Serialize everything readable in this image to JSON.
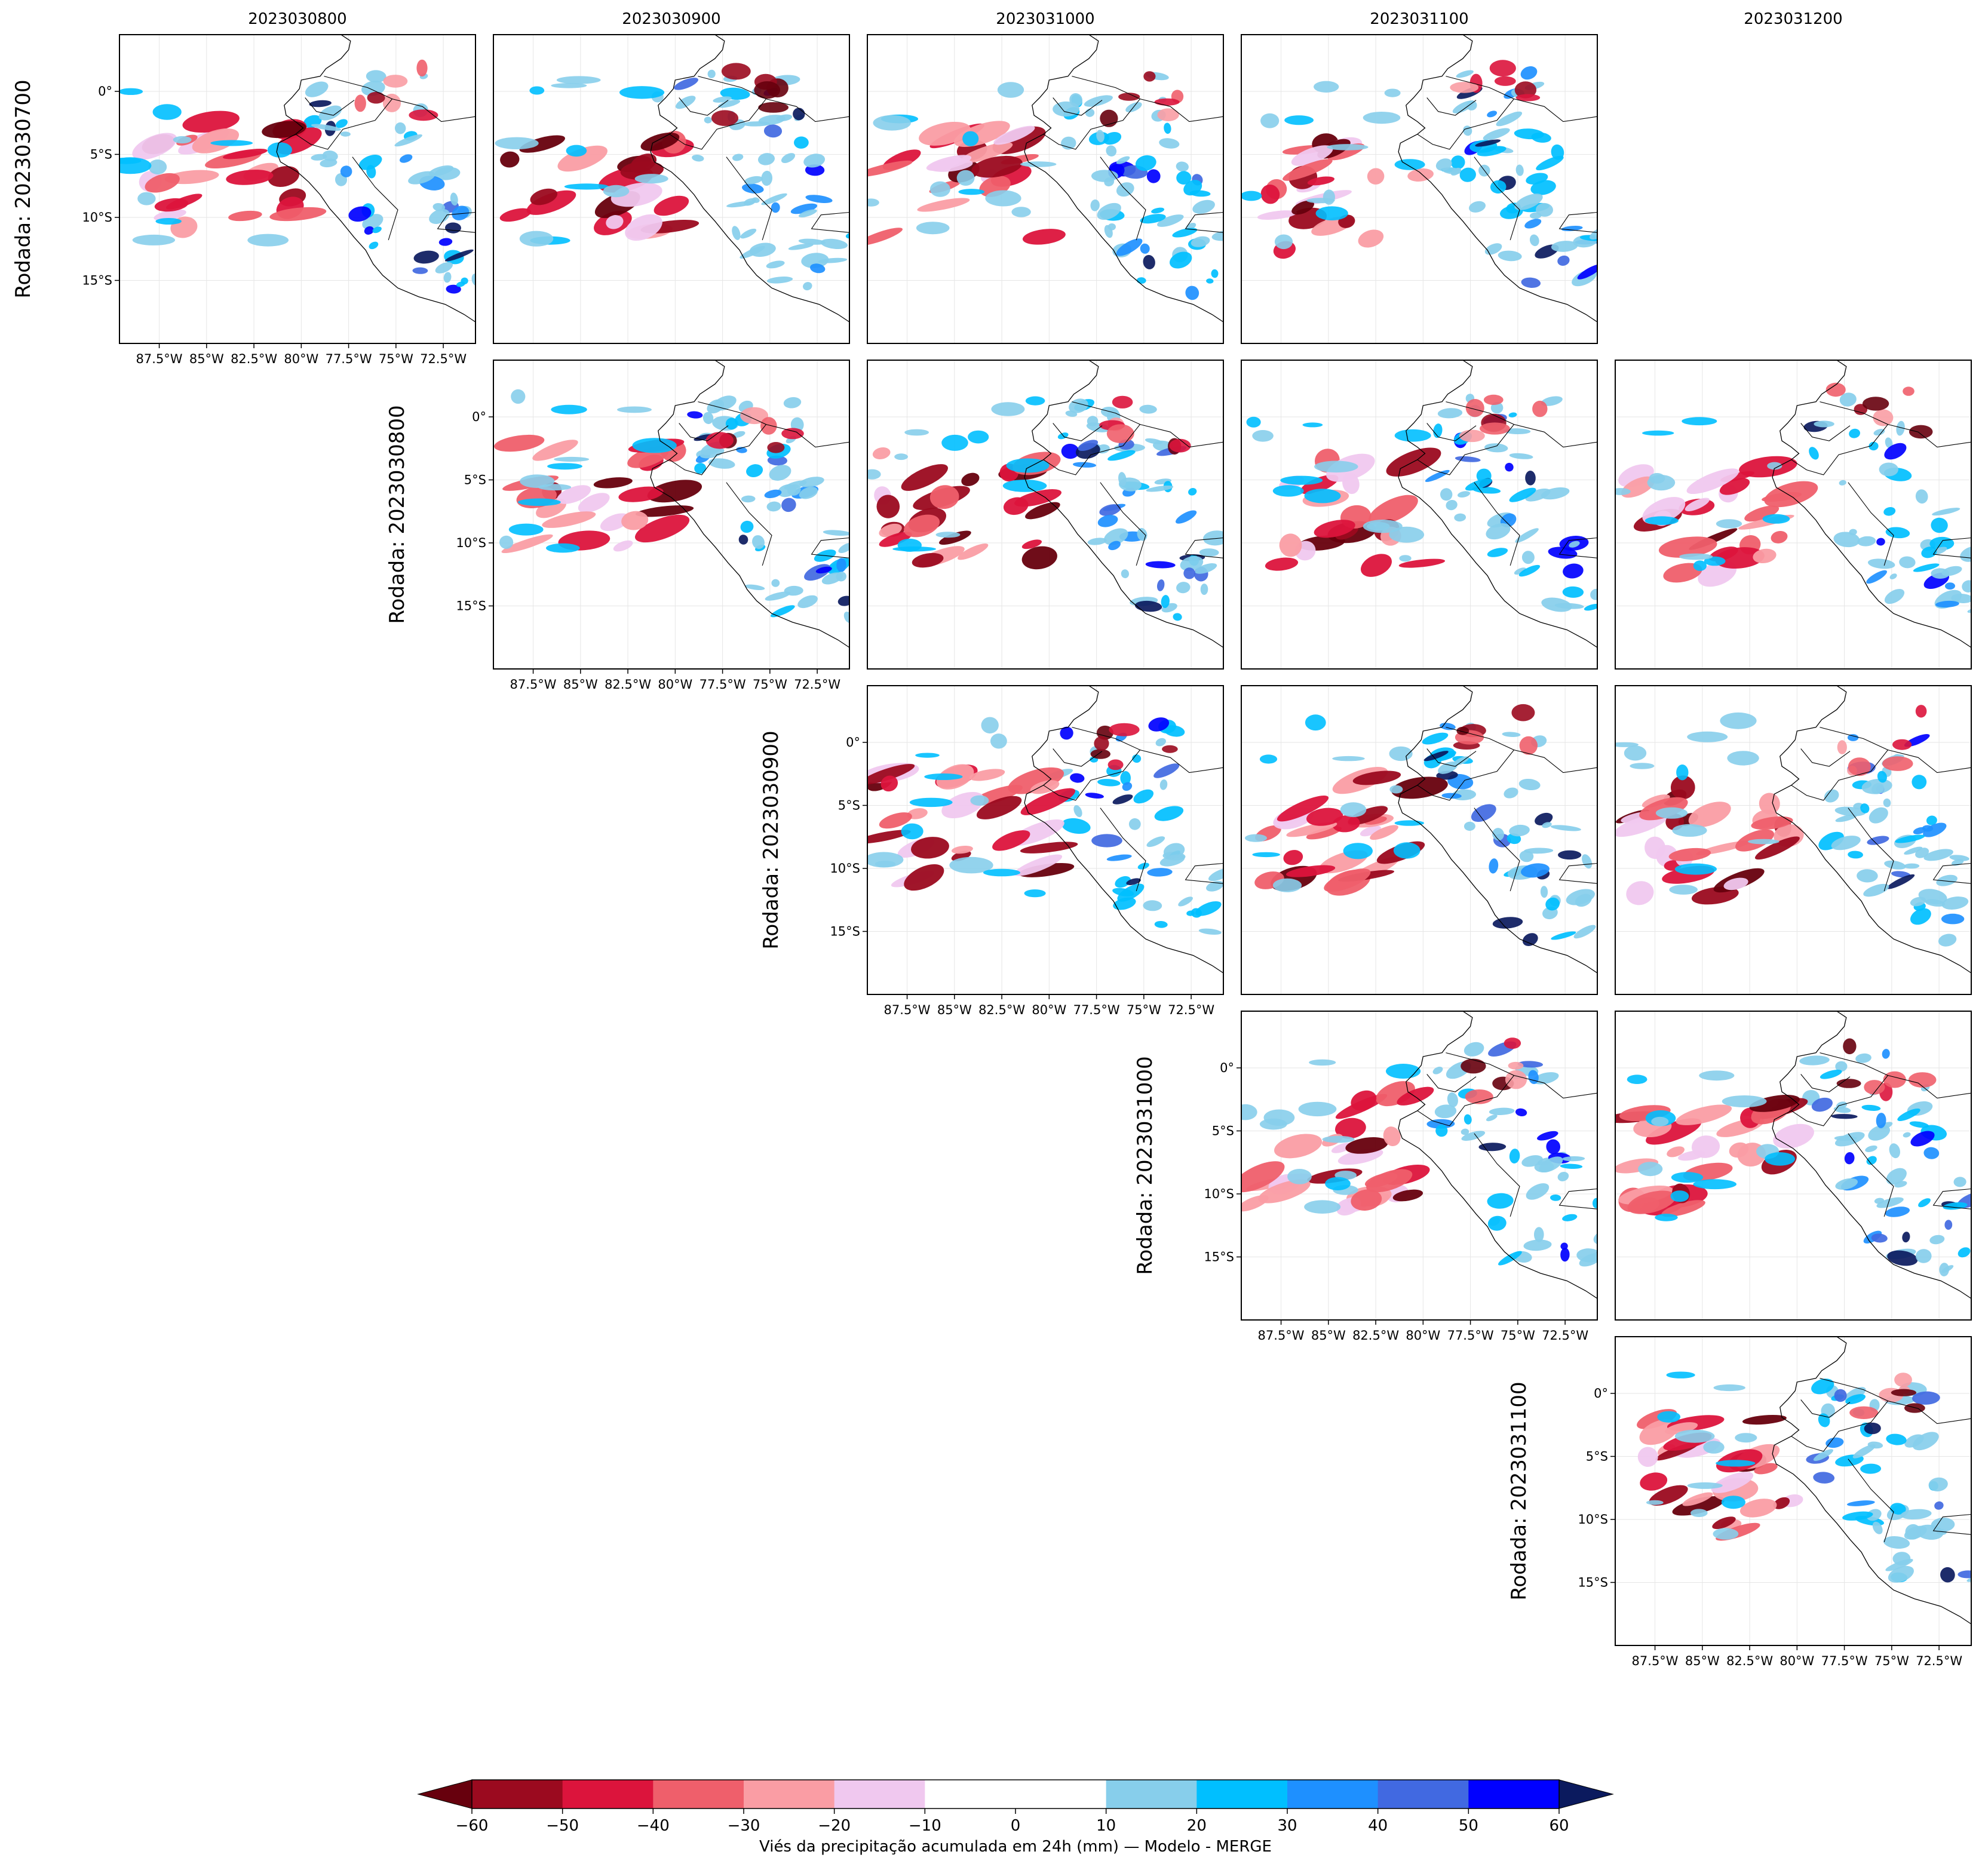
{
  "figure": {
    "valid_dates": [
      "2023030800",
      "2023030900",
      "2023031000",
      "2023031100",
      "2023031200"
    ],
    "run_labels": [
      "Rodada: 2023030700",
      "Rodada: 2023030800",
      "Rodada: 2023030900",
      "Rodada: 2023031000",
      "Rodada: 2023031100"
    ],
    "lat_ticks": [
      "0°",
      "5°S",
      "10°S",
      "15°S"
    ],
    "lon_ticks": [
      "87.5°W",
      "85°W",
      "82.5°W",
      "80°W",
      "77.5°W",
      "75°W",
      "72.5°W"
    ],
    "panels": [
      {
        "run": 0,
        "col": 0,
        "show_lat": true,
        "show_lon": true
      },
      {
        "run": 0,
        "col": 1,
        "show_lat": false,
        "show_lon": false
      },
      {
        "run": 0,
        "col": 2,
        "show_lat": false,
        "show_lon": false
      },
      {
        "run": 0,
        "col": 3,
        "show_lat": false,
        "show_lon": false
      },
      {
        "run": 1,
        "col": 1,
        "show_lat": true,
        "show_lon": true
      },
      {
        "run": 1,
        "col": 2,
        "show_lat": false,
        "show_lon": false
      },
      {
        "run": 1,
        "col": 3,
        "show_lat": false,
        "show_lon": false
      },
      {
        "run": 1,
        "col": 4,
        "show_lat": false,
        "show_lon": false
      },
      {
        "run": 2,
        "col": 2,
        "show_lat": true,
        "show_lon": true
      },
      {
        "run": 2,
        "col": 3,
        "show_lat": false,
        "show_lon": false
      },
      {
        "run": 2,
        "col": 4,
        "show_lat": false,
        "show_lon": false
      },
      {
        "run": 3,
        "col": 3,
        "show_lat": true,
        "show_lon": true
      },
      {
        "run": 3,
        "col": 4,
        "show_lat": false,
        "show_lon": false
      },
      {
        "run": 4,
        "col": 4,
        "show_lat": true,
        "show_lon": true
      }
    ]
  },
  "colorbar": {
    "label": "Viés da precipitação acumulada em 24h (mm) — Modelo - MERGE",
    "ticks": [
      "−60",
      "−50",
      "−40",
      "−30",
      "−20",
      "−10",
      "0",
      "10",
      "20",
      "30",
      "40",
      "50",
      "60"
    ],
    "under_color": "#67000d",
    "over_color": "#0b1a5e",
    "colors": [
      "#9b0a1f",
      "#dc143c",
      "#ef5f6b",
      "#fa9da4",
      "#f0c8ef",
      "#ffffff",
      "#ffffff",
      "#87ceeb",
      "#00bfff",
      "#1e90ff",
      "#4169e1",
      "#0000ff"
    ]
  }
}
